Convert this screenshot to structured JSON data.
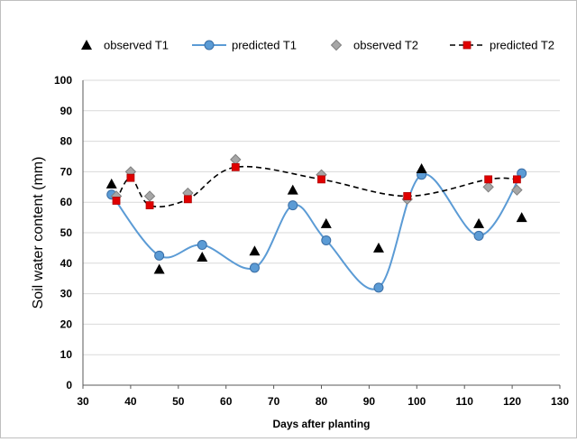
{
  "chart_data": {
    "type": "scatter",
    "xlabel": "Days after planting",
    "ylabel": "Soil water content (mm)",
    "xlim": [
      30,
      130
    ],
    "ylim": [
      0,
      100
    ],
    "xticks": [
      30,
      40,
      50,
      60,
      70,
      80,
      90,
      100,
      110,
      120,
      130
    ],
    "yticks": [
      0,
      10,
      20,
      30,
      40,
      50,
      60,
      70,
      80,
      90,
      100
    ],
    "grid": "horizontal",
    "legend_position": "top",
    "series": [
      {
        "name": "observed T1",
        "marker": "triangle",
        "color": "#000000",
        "line": "none",
        "points": [
          [
            36,
            66
          ],
          [
            46,
            38
          ],
          [
            55,
            42
          ],
          [
            66,
            44
          ],
          [
            74,
            64
          ],
          [
            81,
            53
          ],
          [
            92,
            45
          ],
          [
            101,
            71
          ],
          [
            113,
            53
          ],
          [
            122,
            55
          ]
        ]
      },
      {
        "name": "predicted T1",
        "marker": "circle",
        "color": "#5b9bd5",
        "line": "solid",
        "points": [
          [
            36,
            62.5
          ],
          [
            46,
            42.5
          ],
          [
            55,
            46
          ],
          [
            66,
            38.5
          ],
          [
            74,
            59
          ],
          [
            81,
            47.5
          ],
          [
            92,
            32
          ],
          [
            101,
            69
          ],
          [
            113,
            49
          ],
          [
            122,
            69.5
          ]
        ]
      },
      {
        "name": "observed T2",
        "marker": "diamond",
        "color": "#a6a6a6",
        "line": "none",
        "points": [
          [
            37,
            62
          ],
          [
            40,
            70
          ],
          [
            44,
            62
          ],
          [
            52,
            63
          ],
          [
            62,
            74
          ],
          [
            80,
            69
          ],
          [
            98,
            61
          ],
          [
            115,
            65
          ],
          [
            121,
            64
          ]
        ]
      },
      {
        "name": "predicted T2",
        "marker": "square",
        "color": "#e00000",
        "line": "dashed",
        "points": [
          [
            37,
            60.5
          ],
          [
            40,
            68
          ],
          [
            44,
            59
          ],
          [
            52,
            61
          ],
          [
            62,
            71.5
          ],
          [
            80,
            67.5
          ],
          [
            98,
            62
          ],
          [
            115,
            67.5
          ],
          [
            121,
            67.5
          ]
        ]
      }
    ]
  }
}
